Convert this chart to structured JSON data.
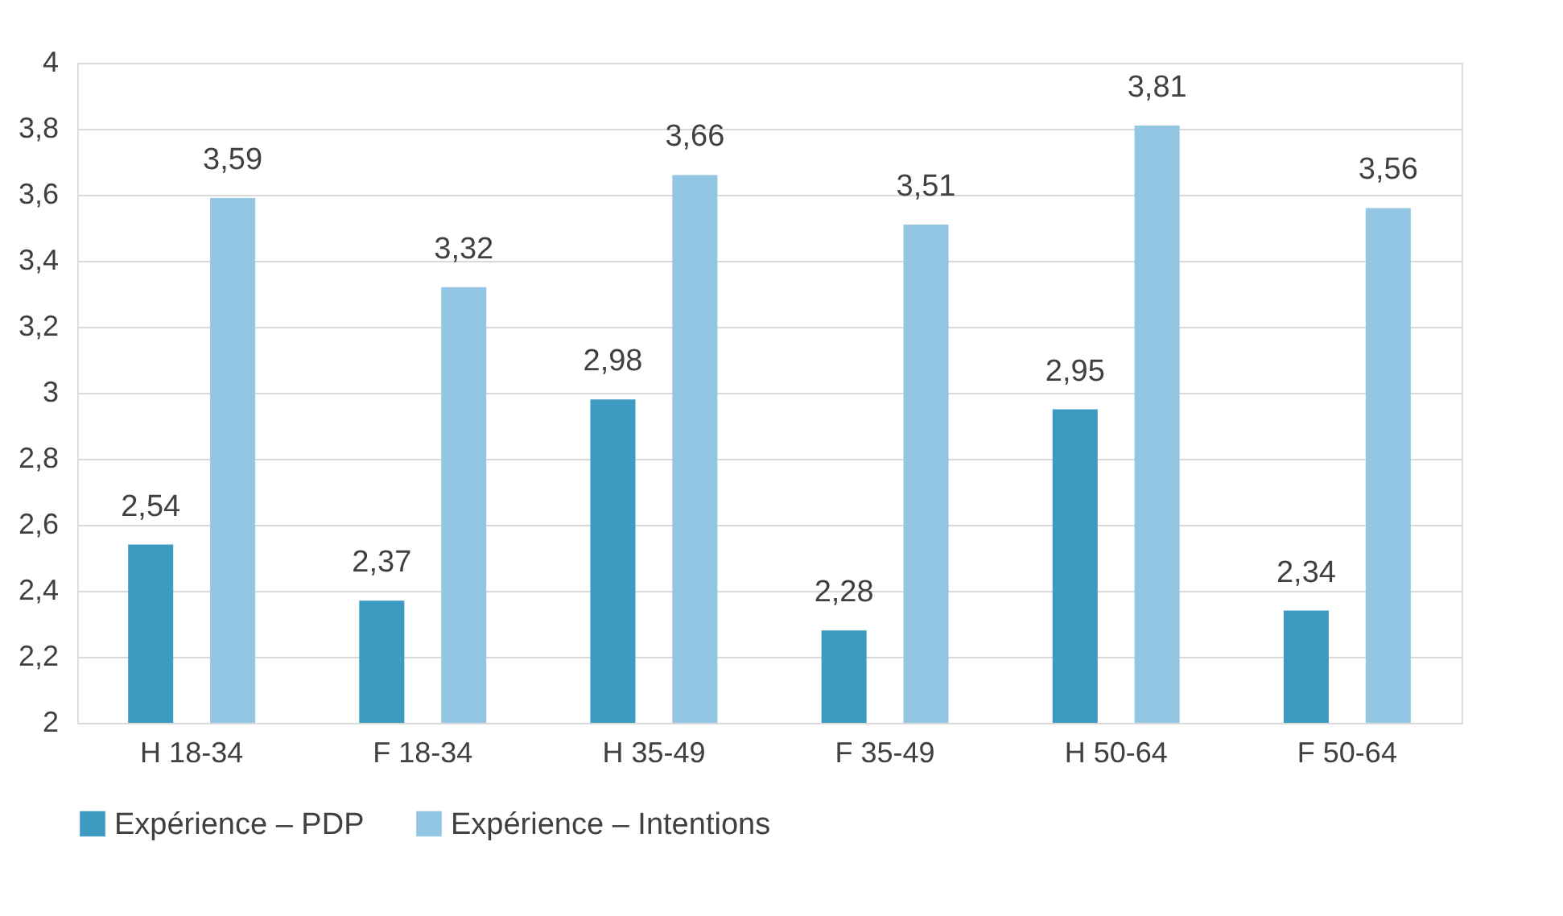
{
  "chart_data": {
    "type": "bar",
    "categories": [
      "H 18-34",
      "F 18-34",
      "H 35-49",
      "F 35-49",
      "H 50-64",
      "F 50-64"
    ],
    "series": [
      {
        "name": "Expérience – PDP",
        "color": "#3d9bc1",
        "values": [
          2.54,
          2.37,
          2.98,
          2.28,
          2.95,
          2.34
        ],
        "value_labels": [
          "2,54",
          "2,37",
          "2,98",
          "2,28",
          "2,95",
          "2,34"
        ]
      },
      {
        "name": "Expérience – Intentions",
        "color": "#92c6e3",
        "values": [
          3.59,
          3.32,
          3.66,
          3.51,
          3.81,
          3.56
        ],
        "value_labels": [
          "3,59",
          "3,32",
          "3,66",
          "3,51",
          "3,81",
          "3,56"
        ]
      }
    ],
    "ylim": [
      2,
      4
    ],
    "yticks": [
      2,
      {
        "value": 2.2,
        "label": "2,2"
      },
      {
        "value": 2.4,
        "label": "2,4"
      },
      {
        "value": 2.6,
        "label": "2,6"
      },
      {
        "value": 2.8,
        "label": "2,8"
      },
      3,
      {
        "value": 3.2,
        "label": "3,2"
      },
      {
        "value": 3.4,
        "label": "3,4"
      },
      {
        "value": 3.6,
        "label": "3,6"
      },
      {
        "value": 3.8,
        "label": "3,8"
      },
      4
    ],
    "grid": "y",
    "legend": "bottom"
  }
}
